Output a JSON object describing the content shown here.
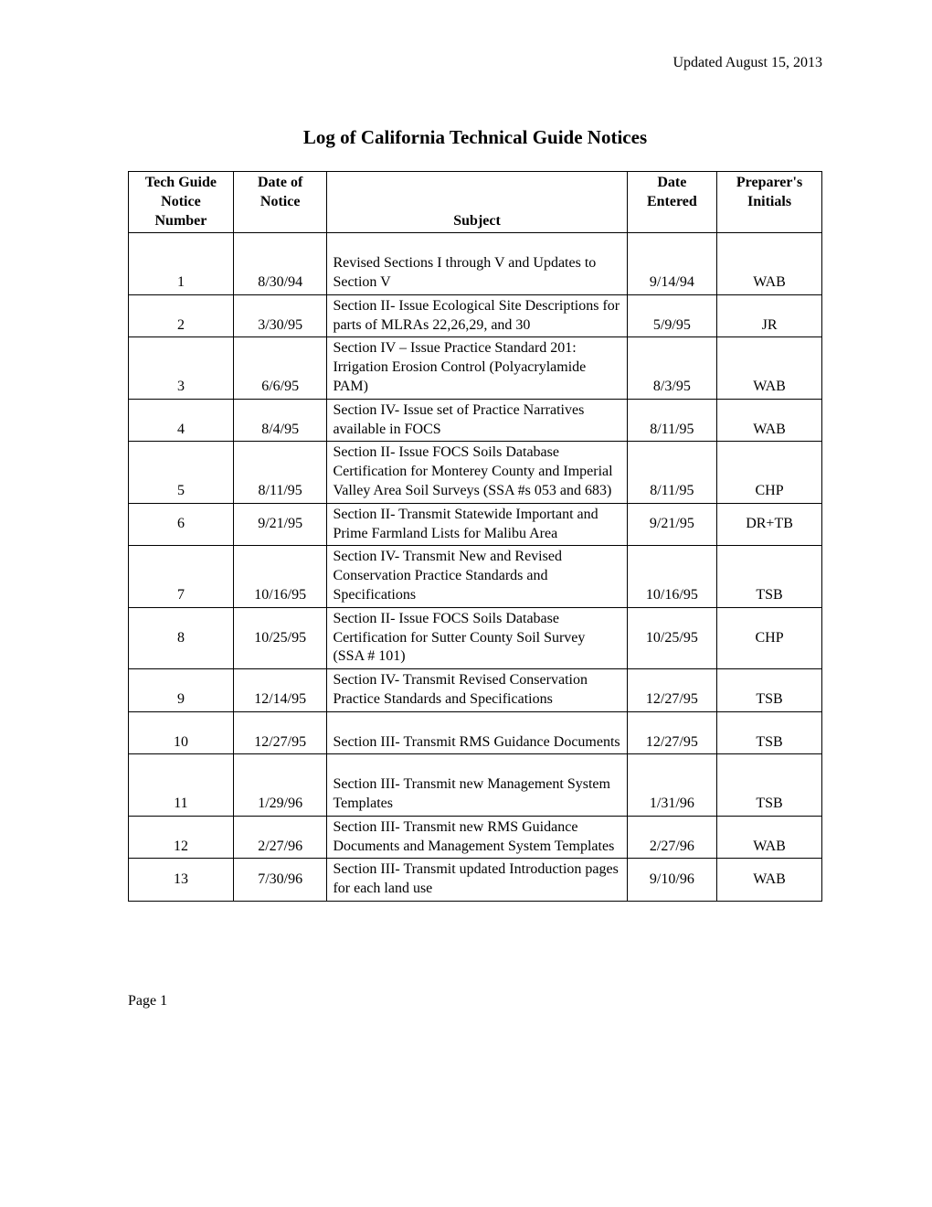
{
  "updated_text": "Updated August 15, 2013",
  "title": "Log of California Technical Guide Notices",
  "columns": {
    "c1": "Tech Guide Notice Number",
    "c2": "Date of Notice",
    "c3": "Subject",
    "c4": "Date Entered",
    "c5": "Preparer's Initials"
  },
  "rows": [
    {
      "num": "1",
      "date": "8/30/94",
      "subject": "Revised Sections I through V and Updates to Section V",
      "entered": "9/14/94",
      "initials": "WAB",
      "pad": true
    },
    {
      "num": "2",
      "date": "3/30/95",
      "subject": "Section II- Issue Ecological Site Descriptions for parts of MLRAs 22,26,29, and 30",
      "entered": "5/9/95",
      "initials": "JR"
    },
    {
      "num": "3",
      "date": "6/6/95",
      "subject": "Section IV – Issue Practice Standard 201: Irrigation Erosion Control (Polyacrylamide PAM)",
      "entered": "8/3/95",
      "initials": "WAB"
    },
    {
      "num": "4",
      "date": "8/4/95",
      "subject": "Section IV- Issue set of Practice Narratives available in FOCS",
      "entered": "8/11/95",
      "initials": "WAB"
    },
    {
      "num": "5",
      "date": "8/11/95",
      "subject": "Section II- Issue FOCS Soils Database Certification for Monterey County and Imperial Valley Area Soil Surveys (SSA #s 053 and 683)",
      "entered": "8/11/95",
      "initials": "CHP"
    },
    {
      "num": "6",
      "date": "9/21/95",
      "subject": "Section II- Transmit Statewide Important and Prime Farmland Lists for Malibu Area",
      "entered": "9/21/95",
      "initials": "DR+TB",
      "valign": "middle"
    },
    {
      "num": "7",
      "date": "10/16/95",
      "subject": "Section IV- Transmit New and Revised Conservation Practice Standards and Specifications",
      "entered": "10/16/95",
      "initials": "TSB"
    },
    {
      "num": "8",
      "date": "10/25/95",
      "subject": "Section II- Issue FOCS Soils Database Certification for Sutter County Soil Survey\n(SSA # 101)",
      "entered": "10/25/95",
      "initials": "CHP",
      "valign": "middle"
    },
    {
      "num": "9",
      "date": "12/14/95",
      "subject": "Section IV- Transmit Revised Conservation Practice Standards and Specifications",
      "entered": "12/27/95",
      "initials": "TSB"
    },
    {
      "num": "10",
      "date": "12/27/95",
      "subject": "Section III- Transmit RMS Guidance Documents",
      "entered": "12/27/95",
      "initials": "TSB",
      "pad": true
    },
    {
      "num": "11",
      "date": "1/29/96",
      "subject": "Section III- Transmit new Management System Templates",
      "entered": "1/31/96",
      "initials": "TSB",
      "pad": true
    },
    {
      "num": "12",
      "date": "2/27/96",
      "subject": "Section III- Transmit new RMS Guidance Documents and Management System Templates",
      "entered": "2/27/96",
      "initials": "WAB"
    },
    {
      "num": "13",
      "date": "7/30/96",
      "subject": "Section III- Transmit updated Introduction pages for each land use",
      "entered": "9/10/96",
      "initials": "WAB",
      "valign": "middle"
    }
  ],
  "footer": "Page 1"
}
